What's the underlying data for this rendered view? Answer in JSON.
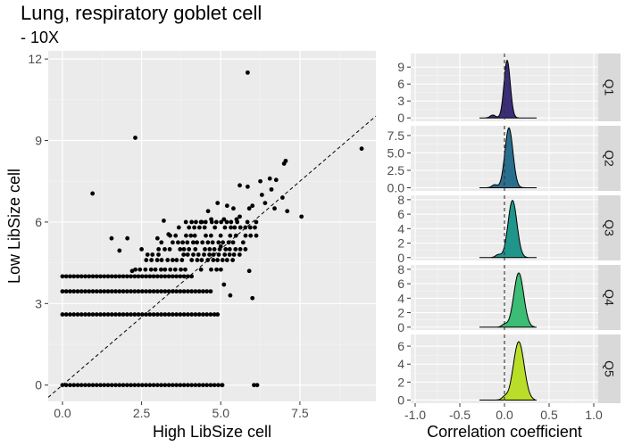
{
  "chart_data": [
    {
      "type": "scatter",
      "title": "Lung, respiratory goblet cell",
      "subtitle": "- 10X",
      "xlabel": "High LibSize cell",
      "ylabel": "Low LibSize cell",
      "xlim": [
        -0.45,
        9.9
      ],
      "ylim": [
        -0.6,
        12.3
      ],
      "xticks": [
        0.0,
        2.5,
        5.0,
        7.5
      ],
      "xtick_labels": [
        "0.0",
        "2.5",
        "5.0",
        "7.5"
      ],
      "yticks": [
        0,
        3,
        6,
        9,
        12
      ],
      "ytick_labels": [
        "0",
        "3",
        "6",
        "9",
        "12"
      ],
      "reference_line": "y = x (dashed)",
      "grid": true,
      "bands": [
        {
          "y": 0.0,
          "x_range": [
            0.0,
            5.1
          ]
        },
        {
          "y": 2.6,
          "x_range": [
            0.0,
            4.85
          ]
        },
        {
          "y": 3.45,
          "x_range": [
            0.0,
            4.7
          ]
        },
        {
          "y": 4.0,
          "x_range": [
            0.0,
            4.1
          ]
        }
      ],
      "points": [
        [
          5.85,
          11.5
        ],
        [
          2.3,
          9.1
        ],
        [
          9.45,
          8.7
        ],
        [
          7.05,
          8.25
        ],
        [
          7.0,
          8.15
        ],
        [
          0.95,
          7.05
        ],
        [
          6.95,
          6.9
        ],
        [
          7.55,
          6.2
        ],
        [
          7.1,
          6.4
        ],
        [
          6.25,
          7.5
        ],
        [
          6.55,
          7.6
        ],
        [
          6.75,
          7.55
        ],
        [
          5.85,
          7.3
        ],
        [
          5.6,
          7.35
        ],
        [
          6.6,
          7.2
        ],
        [
          6.3,
          7.0
        ],
        [
          6.0,
          6.6
        ],
        [
          6.7,
          6.5
        ],
        [
          5.9,
          6.5
        ],
        [
          6.4,
          6.7
        ],
        [
          5.4,
          6.5
        ],
        [
          5.2,
          6.6
        ],
        [
          4.9,
          6.7
        ],
        [
          5.5,
          6.1
        ],
        [
          5.1,
          6.1
        ],
        [
          5.6,
          6.2
        ],
        [
          4.6,
          6.4
        ],
        [
          4.7,
          6.1
        ],
        [
          3.2,
          6.05
        ],
        [
          4.4,
          6.0
        ],
        [
          3.0,
          5.4
        ],
        [
          3.35,
          5.55
        ],
        [
          2.05,
          5.4
        ],
        [
          1.55,
          5.4
        ],
        [
          2.5,
          5.0
        ],
        [
          1.8,
          4.95
        ],
        [
          5.1,
          3.7
        ],
        [
          5.9,
          4.2
        ],
        [
          6.0,
          3.2
        ],
        [
          5.3,
          3.3
        ],
        [
          5.0,
          5.1
        ],
        [
          5.2,
          4.6
        ],
        [
          2.2,
          4.2
        ],
        [
          4.9,
          2.6
        ],
        [
          6.05,
          0.0
        ],
        [
          6.15,
          0.0
        ],
        [
          5.05,
          0.0
        ]
      ],
      "cluster": {
        "x_range": [
          2.3,
          6.2
        ],
        "y_levels": [
          4.25,
          4.6,
          4.8,
          5.0,
          5.25,
          5.5,
          5.8,
          6.0
        ]
      }
    },
    {
      "type": "area",
      "xlabel": "Correlation coefficient",
      "xlim": [
        -1.05,
        1.05
      ],
      "xticks": [
        -1.0,
        -0.5,
        0.0,
        0.5,
        1.0
      ],
      "xtick_labels": [
        "-1.0",
        "-0.5",
        "0.0",
        "0.5",
        "1.0"
      ],
      "reference_line": "x = 0 (dashed)",
      "panels": [
        {
          "strip": "Q1",
          "color": "#3b2d78",
          "ylim": [
            -0.6,
            11.4
          ],
          "yticks": [
            0,
            3,
            6,
            9
          ],
          "ytick_labels": [
            "0",
            "3",
            "6",
            "9"
          ],
          "peak_x": 0.03,
          "peak_y": 10.2,
          "sd": 0.035
        },
        {
          "strip": "Q2",
          "color": "#2a6e8e",
          "ylim": [
            -0.45,
            8.9
          ],
          "yticks": [
            0.0,
            2.5,
            5.0,
            7.5
          ],
          "ytick_labels": [
            "0.0",
            "2.5",
            "5.0",
            "7.5"
          ],
          "peak_x": 0.05,
          "peak_y": 8.6,
          "sd": 0.045
        },
        {
          "strip": "Q3",
          "color": "#1f958b",
          "ylim": [
            -0.4,
            8.6
          ],
          "yticks": [
            0,
            2,
            4,
            6,
            8
          ],
          "ytick_labels": [
            "0",
            "2",
            "4",
            "6",
            "8"
          ],
          "peak_x": 0.09,
          "peak_y": 7.9,
          "sd": 0.05
        },
        {
          "strip": "Q4",
          "color": "#3cbc75",
          "ylim": [
            -0.4,
            8.6
          ],
          "yticks": [
            0,
            2,
            4,
            6,
            8
          ],
          "ytick_labels": [
            "0",
            "2",
            "4",
            "6",
            "8"
          ],
          "peak_x": 0.16,
          "peak_y": 7.5,
          "sd": 0.055
        },
        {
          "strip": "Q5",
          "color": "#b8de29",
          "ylim": [
            -0.35,
            7.3
          ],
          "yticks": [
            0,
            2,
            4,
            6
          ],
          "ytick_labels": [
            "0",
            "2",
            "4",
            "6"
          ],
          "peak_x": 0.16,
          "peak_y": 6.5,
          "sd": 0.06
        }
      ]
    }
  ]
}
